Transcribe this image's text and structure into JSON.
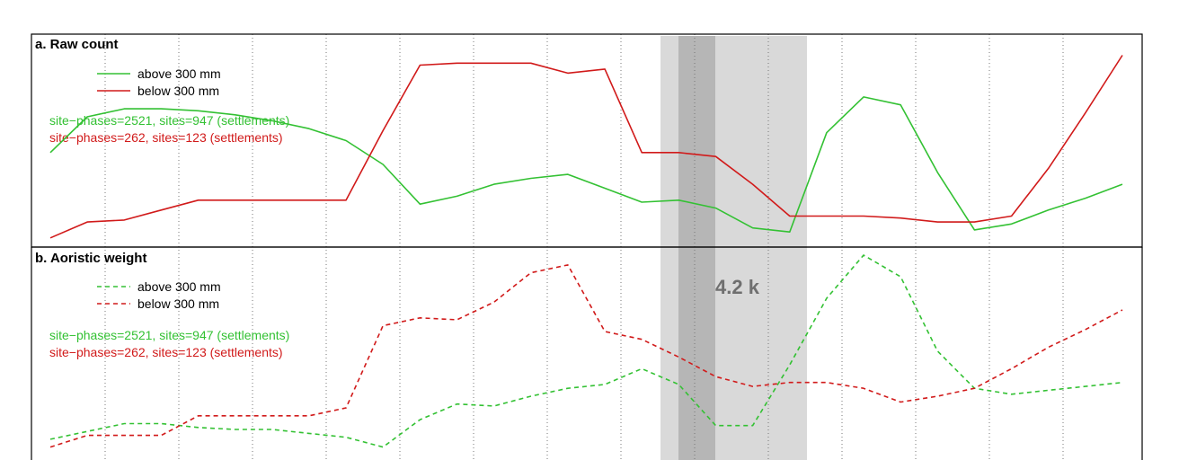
{
  "colors": {
    "green": "#33c133",
    "red": "#d11a1a",
    "band_light": "#d9d9d9",
    "band_dark": "#aaaaaa",
    "band_label": "#6f6f6f"
  },
  "band_label": "4.2 k",
  "chart_data": [
    {
      "type": "line",
      "title": "a. Raw count",
      "x": [
        0,
        1,
        2,
        3,
        4,
        5,
        6,
        7,
        8,
        9,
        10,
        11,
        12,
        13,
        14,
        15,
        16,
        17,
        18,
        19,
        20,
        21,
        22,
        23,
        24,
        25,
        26,
        27,
        28,
        29
      ],
      "series": [
        {
          "name": "above 300 mm",
          "style": "solid",
          "values": [
            44,
            62,
            66,
            66,
            65,
            63,
            60,
            56,
            50,
            38,
            18,
            22,
            28,
            31,
            33,
            26,
            19,
            20,
            16,
            6,
            4,
            54,
            72,
            68,
            34,
            5,
            8,
            15,
            21,
            28
          ]
        },
        {
          "name": "below 300 mm",
          "style": "solid",
          "values": [
            1,
            9,
            10,
            15,
            20,
            20,
            20,
            20,
            20,
            55,
            88,
            89,
            89,
            89,
            84,
            86,
            44,
            44,
            42,
            28,
            12,
            12,
            12,
            11,
            9,
            9,
            12,
            36,
            64,
            93
          ]
        }
      ],
      "annotations": [
        {
          "text": "site−phases=2521, sites=947 (settlements)",
          "color": "#33c133"
        },
        {
          "text": "site−phases=262, sites=123 (settlements)",
          "color": "#d11a1a"
        }
      ],
      "grid": "vertical dotted",
      "legend": "top-left"
    },
    {
      "type": "line",
      "title": "b. Aoristic weight",
      "x": [
        0,
        1,
        2,
        3,
        4,
        5,
        6,
        7,
        8,
        9,
        10,
        11,
        12,
        13,
        14,
        15,
        16,
        17,
        18,
        19,
        20,
        21,
        22,
        23,
        24,
        25,
        26,
        27,
        28,
        29
      ],
      "series": [
        {
          "name": "above 300 mm",
          "style": "dashed",
          "values": [
            6,
            10,
            14,
            14,
            12,
            11,
            11,
            9,
            7,
            2,
            16,
            24,
            23,
            28,
            32,
            34,
            42,
            34,
            13,
            13,
            44,
            78,
            100,
            89,
            51,
            32,
            29,
            31,
            33,
            35
          ]
        },
        {
          "name": "below 300 mm",
          "style": "dashed",
          "values": [
            2,
            8,
            8,
            8,
            18,
            18,
            18,
            18,
            22,
            64,
            68,
            67,
            76,
            91,
            95,
            61,
            57,
            48,
            38,
            33,
            35,
            35,
            32,
            25,
            28,
            32,
            42,
            53,
            62,
            72
          ]
        }
      ],
      "annotations": [
        {
          "text": "site−phases=2521, sites=947 (settlements)",
          "color": "#33c133"
        },
        {
          "text": "site−phases=262, sites=123 (settlements)",
          "color": "#d11a1a"
        }
      ],
      "grid": "vertical dotted",
      "legend": "top-left"
    }
  ]
}
